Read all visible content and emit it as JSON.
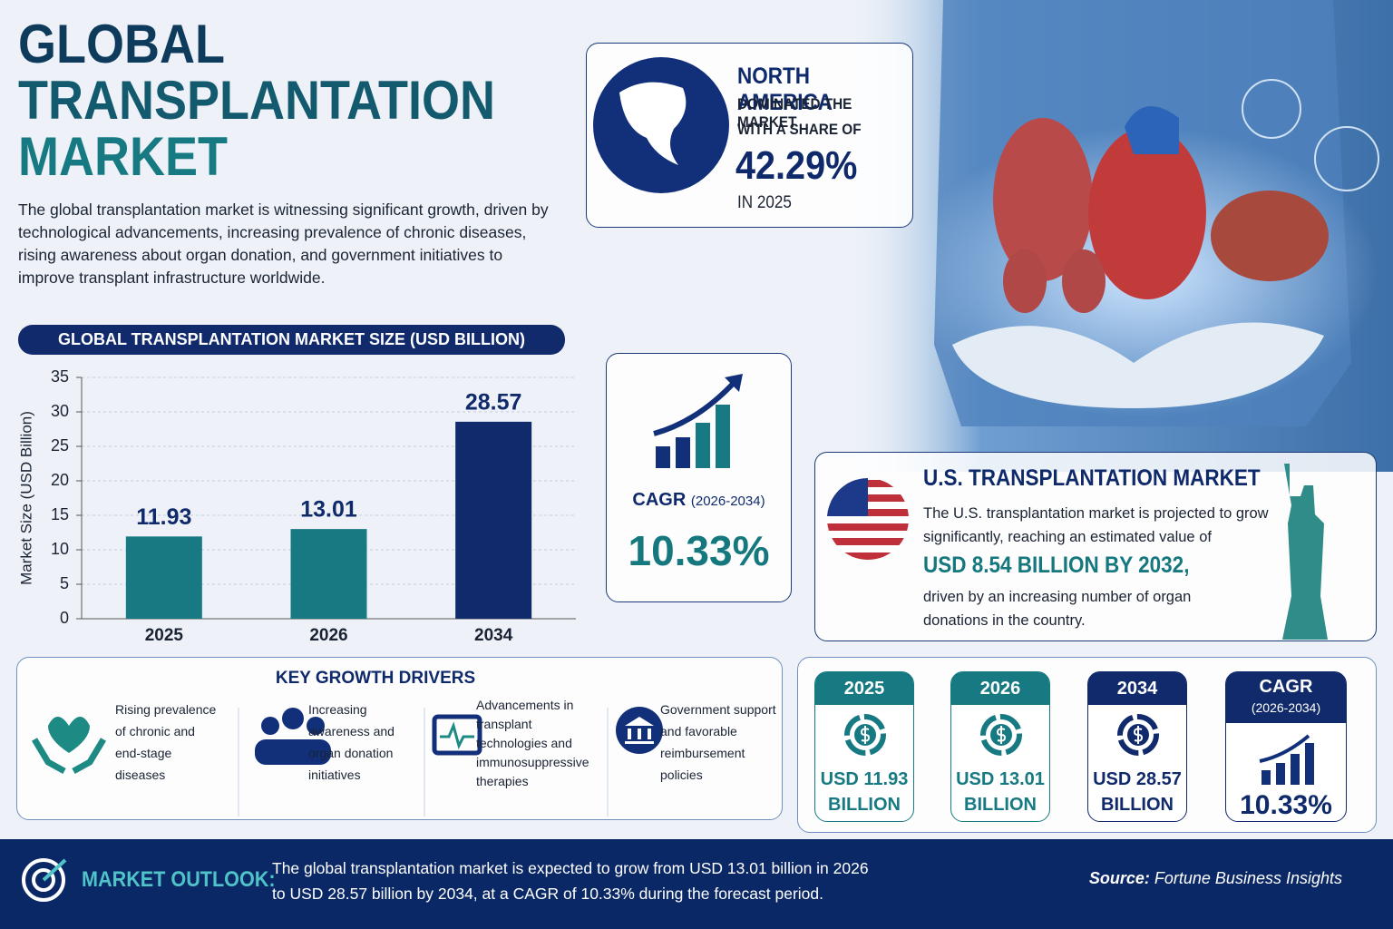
{
  "header": {
    "title_lines": [
      "GLOBAL",
      "TRANSPLANTATION",
      "MARKET"
    ],
    "description": "The global transplantation market is witnessing significant growth, driven by technological advancements, increasing prevalence of chronic diseases, rising awareness about organ donation, and government initiatives to improve transplant infrastructure worldwide."
  },
  "north_america": {
    "title": "NORTH AMERICA",
    "line1": "DOMINATED THE MARKET",
    "line2": "WITH A SHARE OF",
    "share": "42.29%",
    "year": "IN 2025"
  },
  "chart_data": {
    "type": "bar",
    "title": "GLOBAL TRANSPLANTATION MARKET SIZE (USD BILLION)",
    "y_label": "Market Size (USD Billion)",
    "categories": [
      "2025",
      "2026",
      "2034"
    ],
    "values": [
      11.93,
      13.01,
      28.57
    ],
    "colors": [
      "#177a82",
      "#177a82",
      "#102a6b"
    ],
    "ylim": [
      0,
      35
    ],
    "yticks": [
      0,
      5,
      10,
      15,
      20,
      25,
      30,
      35
    ],
    "grid": true
  },
  "cagr_card": {
    "label": "CAGR",
    "period": "(2026-2034)",
    "value": "10.33%"
  },
  "us_market": {
    "title": "U.S. TRANSPLANTATION MARKET",
    "text1": "The U.S. transplantation market is projected to grow significantly, reaching an estimated value of",
    "highlight": "USD 8.54 BILLION BY 2032,",
    "text2": "driven by an increasing number of organ donations in the country."
  },
  "drivers": {
    "title": "KEY GROWTH DRIVERS",
    "items": [
      "Rising prevalence of chronic and end-stage diseases",
      "Increasing awareness and organ donation initiatives",
      "Advancements in transplant technologies and immunosuppressive therapies",
      "Government support and favorable reimbursement policies"
    ]
  },
  "summary_cards": [
    {
      "year": "2025",
      "value": "USD 11.93 BILLION"
    },
    {
      "year": "2026",
      "value": "USD 13.01 BILLION"
    },
    {
      "year": "2034",
      "value": "USD 28.57 BILLION"
    }
  ],
  "summary_cagr": {
    "label": "CAGR",
    "period": "(2026-2034)",
    "value": "10.33%"
  },
  "outlook": {
    "label": "MARKET OUTLOOK:",
    "text": "The global transplantation market is expected to grow from USD 13.01 billion in 2026 to USD 28.57 billion by 2034, at a CAGR of 10.33% during the forecast period.",
    "source_label": "Source:",
    "source": "Fortune Business Insights"
  }
}
